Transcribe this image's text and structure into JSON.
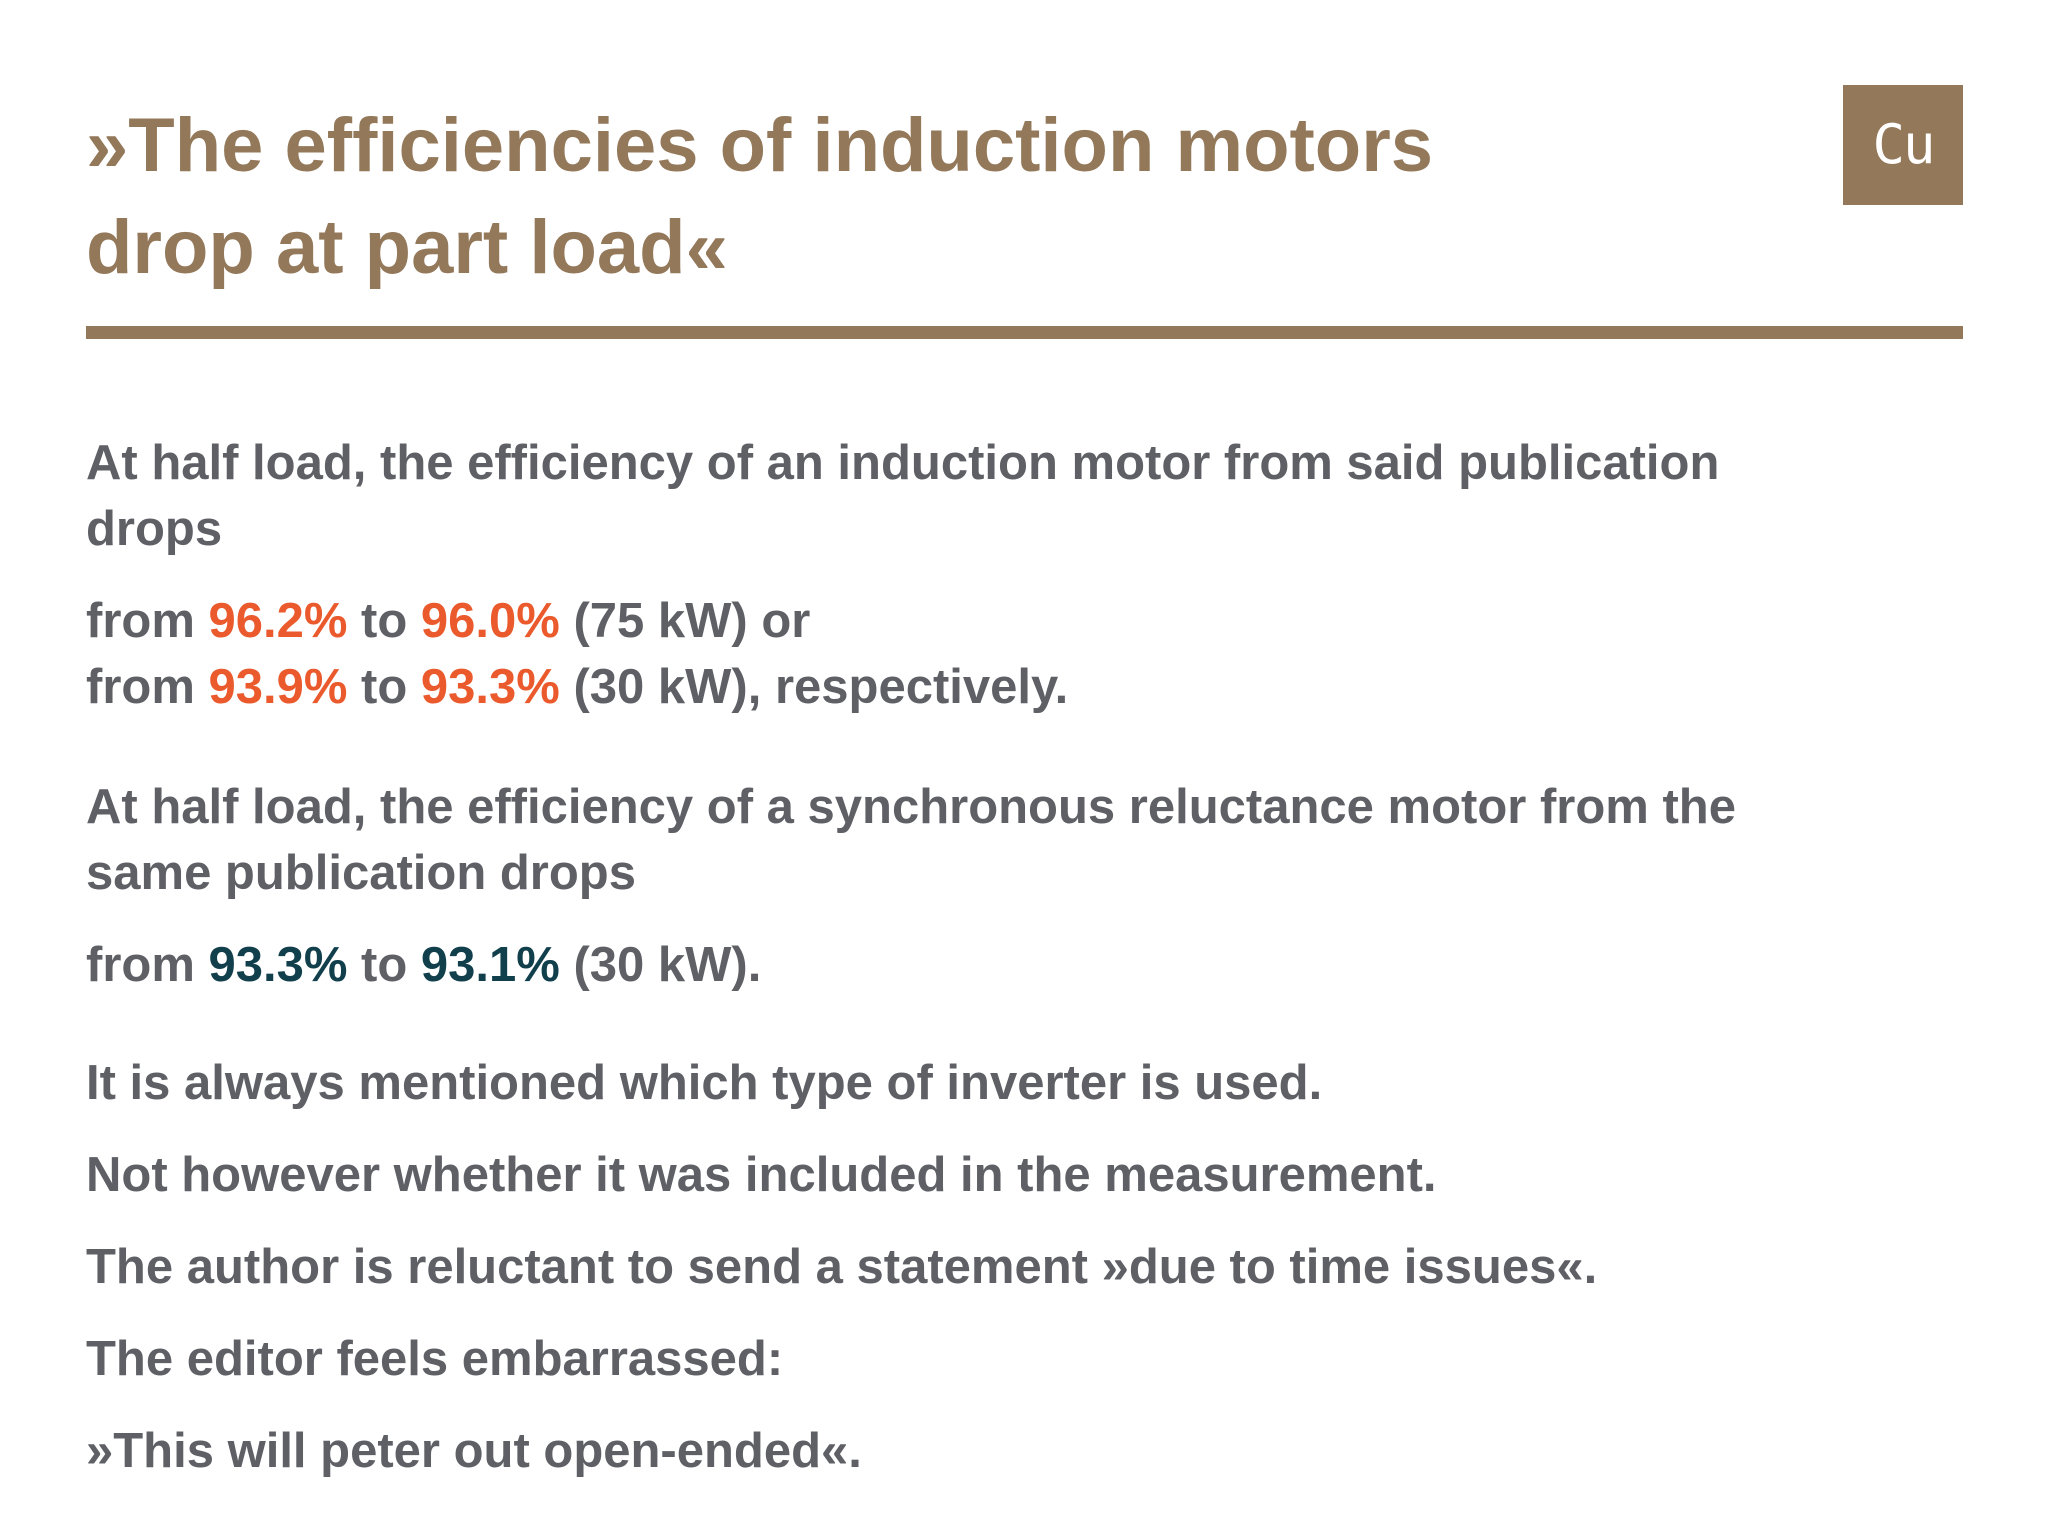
{
  "title": {
    "line1": "»The efficiencies of induction motors",
    "line2": "drop at part load«"
  },
  "logo": {
    "text": "Cu"
  },
  "colors": {
    "brand": "#93785a",
    "text": "#5e6066",
    "highlight_orange": "#ea5a2c",
    "highlight_teal": "#113f4c"
  },
  "paragraph1": {
    "line1": "At half load, the efficiency of an induction motor from said publication",
    "line2": "drops"
  },
  "induction_values": {
    "row1": {
      "from_word": "from ",
      "value_from": "96.2%",
      "to_word": " to ",
      "value_to": "96.0%",
      "suffix": " (75 kW) or"
    },
    "row2": {
      "from_word": "from ",
      "value_from": "93.9%",
      "to_word": " to ",
      "value_to": "93.3%",
      "suffix": " (30 kW), respectively."
    }
  },
  "paragraph2": {
    "line1": "At half load, the efficiency of a synchronous reluctance motor from the",
    "line2": "same publication drops"
  },
  "reluctance_values": {
    "from_word": "from ",
    "value_from": "93.3%",
    "to_word": " to ",
    "value_to": "93.1%",
    "suffix": " (30 kW)."
  },
  "statements": [
    "It is always mentioned which type of inverter is used.",
    "Not however whether it was included in the measurement.",
    "The author is reluctant to send a statement »due to time issues«.",
    "The editor feels embarrassed:",
    "»This will peter out open-ended«."
  ]
}
